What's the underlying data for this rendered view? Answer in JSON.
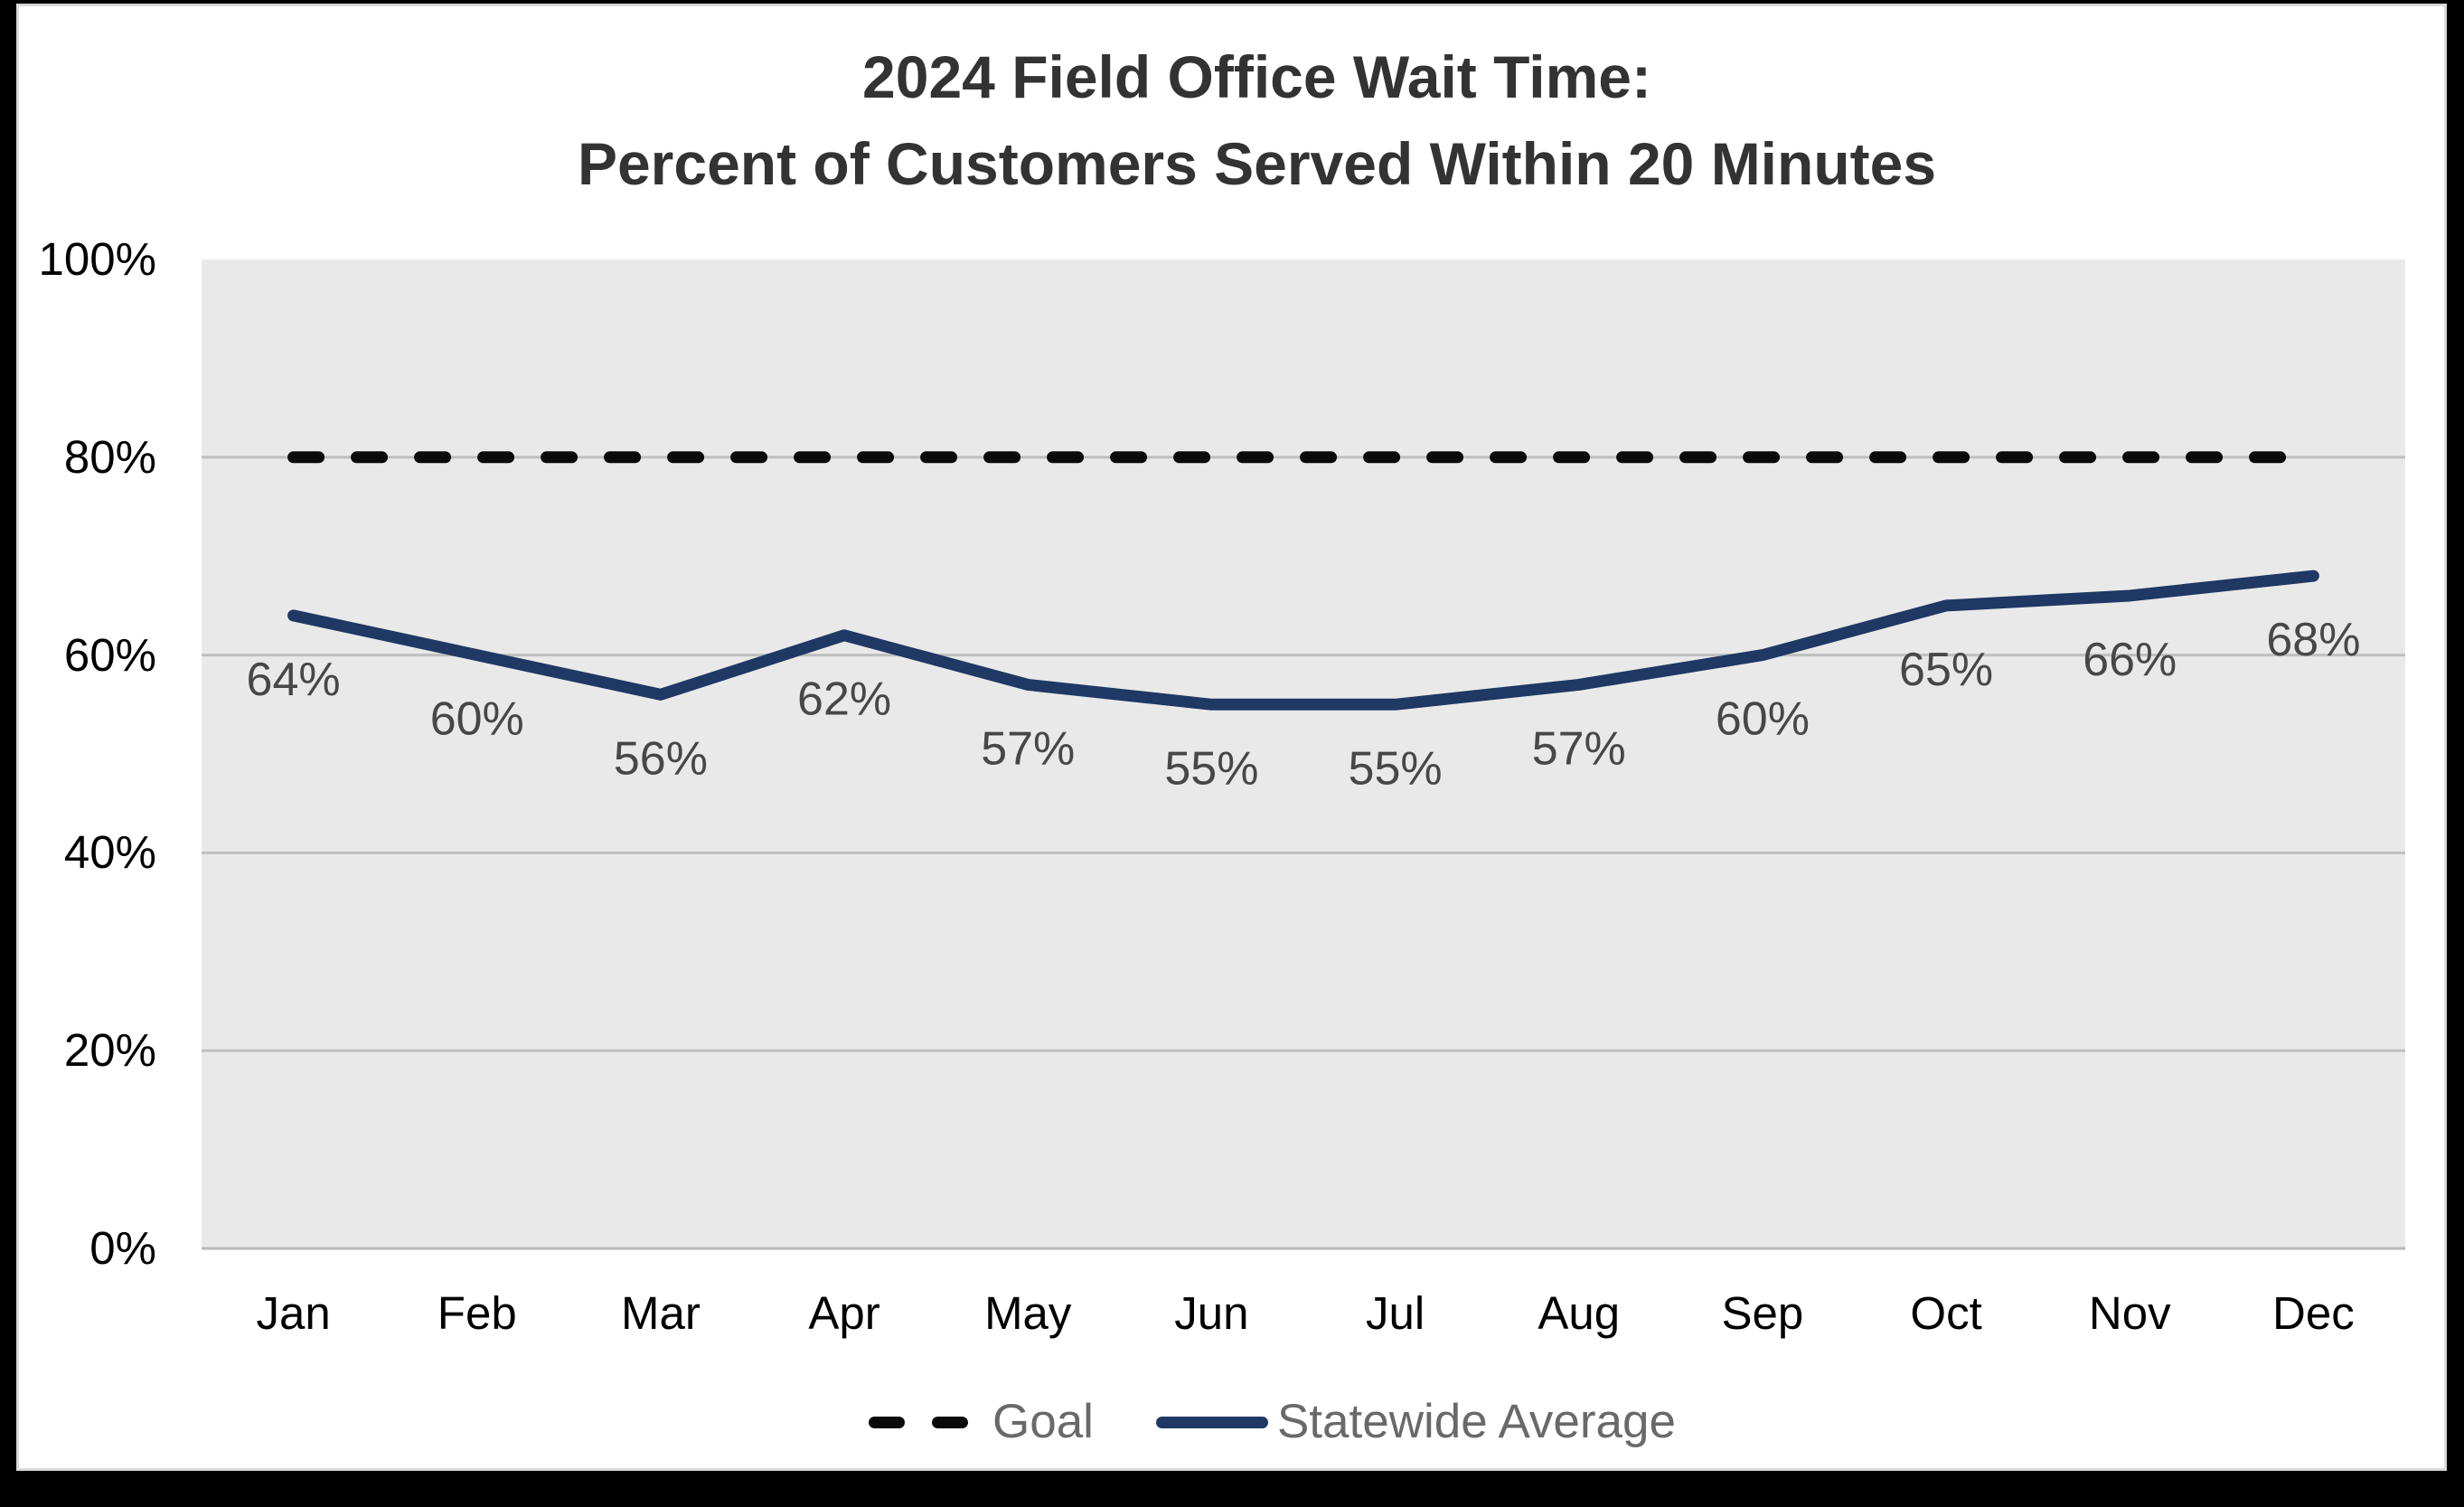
{
  "frame": {
    "background": "#000000",
    "slide_background": "#FFFFFF",
    "slide_border": "#D9D9D9"
  },
  "chart_data": {
    "type": "line",
    "title_line1": "2024 Field Office Wait Time:",
    "title_line2": "Percent of Customers Served Within 20 Minutes",
    "categories": [
      "Jan",
      "Feb",
      "Mar",
      "Apr",
      "May",
      "Jun",
      "Jul",
      "Aug",
      "Sep",
      "Oct",
      "Nov",
      "Dec"
    ],
    "series": [
      {
        "name": "Goal",
        "style": "dashed",
        "color": "#0A0A0A",
        "constant_value": 80
      },
      {
        "name": "Statewide Average",
        "style": "solid",
        "color": "#1F3864",
        "values": [
          64,
          60,
          56,
          62,
          57,
          55,
          55,
          57,
          60,
          65,
          66,
          68
        ]
      }
    ],
    "data_labels": [
      "64%",
      "60%",
      "56%",
      "62%",
      "57%",
      "55%",
      "55%",
      "57%",
      "60%",
      "65%",
      "66%",
      "68%"
    ],
    "y_axis": {
      "min": 0,
      "max": 100,
      "tick_step": 20,
      "tick_labels_top_to_bottom": [
        "100%",
        "80%",
        "60%",
        "40%",
        "20%",
        "0%"
      ]
    },
    "grid": true,
    "plot_background": "#E9E9E9",
    "gridline_color": "#BFBFBF",
    "label_color": "#474747",
    "legend": {
      "position": "bottom",
      "items": [
        {
          "label": "Goal"
        },
        {
          "label": "Statewide Average"
        }
      ]
    }
  }
}
